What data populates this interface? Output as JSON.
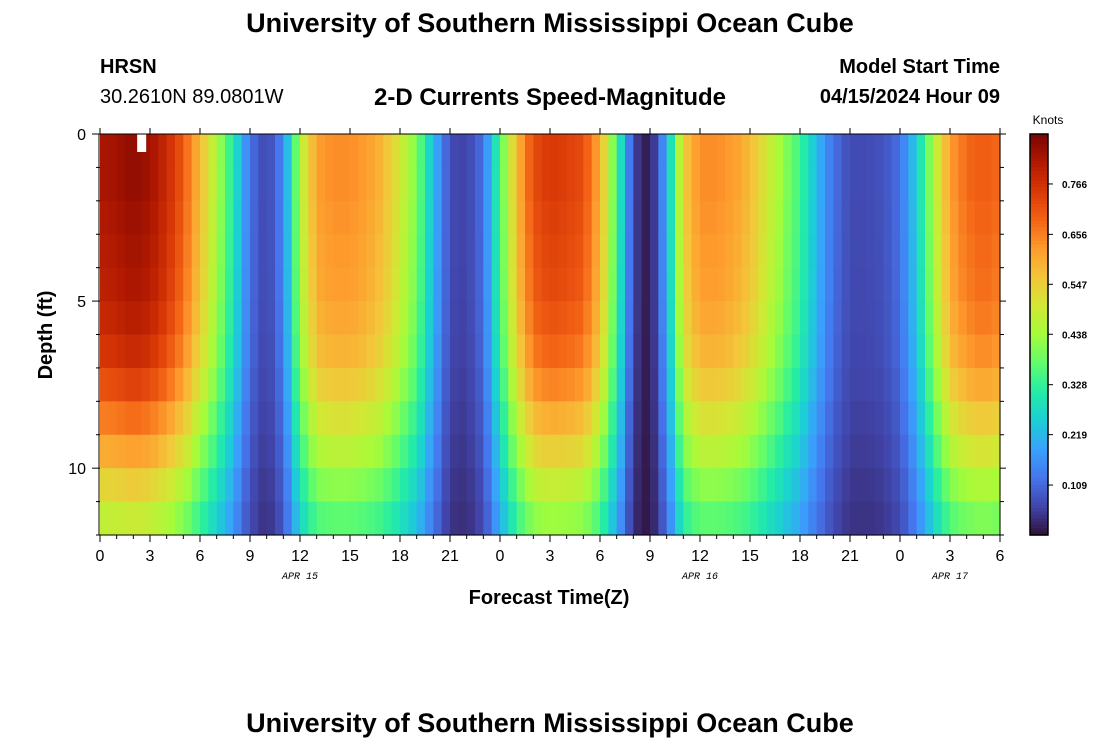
{
  "header": {
    "title": "University of Southern Mississippi Ocean Cube",
    "station_name": "HRSN",
    "coordinates": "30.2610N  89.0801W",
    "plot_title": "2-D Currents Speed-Magnitude",
    "model_start_label": "Model Start Time",
    "model_start_value": "04/15/2024 Hour 09"
  },
  "footer": {
    "title": "University of Southern Mississippi Ocean Cube"
  },
  "chart_data": {
    "type": "heatmap",
    "title": "2-D Currents Speed-Magnitude",
    "xlabel": "Forecast Time(Z)",
    "ylabel": "Depth (ft)",
    "x_range_hours": [
      0,
      54
    ],
    "x_ticks": [
      {
        "hour": 0,
        "label": "0"
      },
      {
        "hour": 3,
        "label": "3"
      },
      {
        "hour": 6,
        "label": "6"
      },
      {
        "hour": 9,
        "label": "9"
      },
      {
        "hour": 12,
        "label": "12"
      },
      {
        "hour": 15,
        "label": "15"
      },
      {
        "hour": 18,
        "label": "18"
      },
      {
        "hour": 21,
        "label": "21"
      },
      {
        "hour": 24,
        "label": "0"
      },
      {
        "hour": 27,
        "label": "3"
      },
      {
        "hour": 30,
        "label": "6"
      },
      {
        "hour": 33,
        "label": "9"
      },
      {
        "hour": 36,
        "label": "12"
      },
      {
        "hour": 39,
        "label": "15"
      },
      {
        "hour": 42,
        "label": "18"
      },
      {
        "hour": 45,
        "label": "21"
      },
      {
        "hour": 48,
        "label": "0"
      },
      {
        "hour": 51,
        "label": "3"
      },
      {
        "hour": 54,
        "label": "6"
      }
    ],
    "date_labels": [
      {
        "hour": 12,
        "label": "APR 15"
      },
      {
        "hour": 36,
        "label": "APR 16"
      },
      {
        "hour": 51,
        "label": "APR 17"
      }
    ],
    "y_range_ft": [
      0,
      12
    ],
    "y_ticks": [
      0,
      5,
      10
    ],
    "depth_levels_ft": [
      0,
      1,
      2,
      3,
      4,
      5,
      6,
      7,
      8,
      9,
      10,
      11,
      12
    ],
    "surface_speed_knots_hourly": [
      0.82,
      0.83,
      0.85,
      0.83,
      0.78,
      0.7,
      0.58,
      0.45,
      0.3,
      0.12,
      0.06,
      0.15,
      0.45,
      0.62,
      0.64,
      0.64,
      0.62,
      0.58,
      0.5,
      0.4,
      0.22,
      0.07,
      0.06,
      0.12,
      0.35,
      0.58,
      0.72,
      0.75,
      0.74,
      0.72,
      0.6,
      0.35,
      0.06,
      0.0,
      0.2,
      0.55,
      0.64,
      0.64,
      0.62,
      0.58,
      0.5,
      0.42,
      0.34,
      0.22,
      0.12,
      0.07,
      0.07,
      0.08,
      0.12,
      0.25,
      0.45,
      0.62,
      0.68,
      0.7,
      0.68
    ],
    "depth_attenuation": [
      1.0,
      1.0,
      0.99,
      0.98,
      0.97,
      0.95,
      0.92,
      0.87,
      0.8,
      0.73,
      0.65,
      0.58,
      0.5
    ],
    "marker": {
      "hour": 2.5,
      "depth_ft": 0.3
    },
    "colorbar": {
      "unit": "Knots",
      "range": [
        0.0,
        0.875
      ],
      "tick_values": [
        0.766,
        0.656,
        0.547,
        0.438,
        0.328,
        0.219,
        0.109
      ],
      "tick_labels": [
        "0.766",
        "0.656",
        "0.547",
        "0.438",
        "0.328",
        "0.219",
        "0.109"
      ],
      "colormap": [
        "#30123b",
        "#4145ab",
        "#4675ed",
        "#39a2fc",
        "#1bcfd4",
        "#24eca6",
        "#61fc6c",
        "#a4fc3b",
        "#d1e834",
        "#f3c63a",
        "#fe9b2d",
        "#f36315",
        "#d93806",
        "#b11901",
        "#7a0403"
      ]
    }
  }
}
